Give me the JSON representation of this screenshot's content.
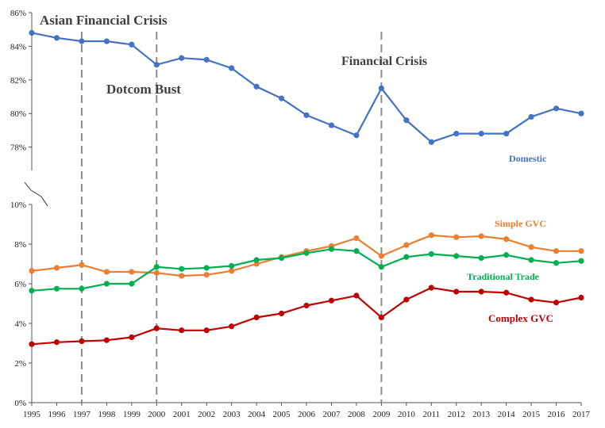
{
  "chart_data": {
    "type": "line",
    "x": [
      "1995",
      "1996",
      "1997",
      "1998",
      "1999",
      "2000",
      "2001",
      "2002",
      "2003",
      "2004",
      "2005",
      "2006",
      "2007",
      "2008",
      "2009",
      "2010",
      "2011",
      "2012",
      "2013",
      "2014",
      "2015",
      "2016",
      "2017"
    ],
    "upper_panel": {
      "yticks": [
        "78%",
        "80%",
        "82%",
        "84%",
        "86%"
      ],
      "ylim": [
        76,
        86
      ],
      "series": [
        {
          "name": "Domestic",
          "color": "#4472C4",
          "values": [
            84.8,
            84.5,
            84.3,
            84.3,
            84.1,
            82.9,
            83.3,
            83.2,
            82.7,
            81.6,
            80.9,
            79.9,
            79.3,
            78.7,
            81.5,
            79.6,
            78.3,
            78.8,
            78.8,
            78.8,
            79.8,
            80.3,
            80.0
          ]
        }
      ]
    },
    "lower_panel": {
      "yticks": [
        "0%",
        "2%",
        "4%",
        "6%",
        "8%",
        "10%"
      ],
      "ylim": [
        0,
        10
      ],
      "series": [
        {
          "name": "Simple GVC",
          "color": "#ED7D31",
          "values": [
            6.65,
            6.8,
            6.95,
            6.6,
            6.6,
            6.55,
            6.4,
            6.45,
            6.65,
            7.0,
            7.35,
            7.65,
            7.9,
            8.3,
            7.4,
            7.95,
            8.45,
            8.35,
            8.4,
            8.25,
            7.85,
            7.65,
            7.65
          ]
        },
        {
          "name": "Traditional Trade",
          "color": "#00B050",
          "values": [
            5.65,
            5.75,
            5.75,
            6.0,
            6.0,
            6.85,
            6.75,
            6.8,
            6.9,
            7.2,
            7.3,
            7.55,
            7.75,
            7.65,
            6.85,
            7.35,
            7.5,
            7.4,
            7.3,
            7.45,
            7.2,
            7.05,
            7.15
          ]
        },
        {
          "name": "Complex GVC",
          "color": "#C00000",
          "values": [
            2.95,
            3.05,
            3.1,
            3.15,
            3.3,
            3.75,
            3.65,
            3.65,
            3.85,
            4.3,
            4.5,
            4.9,
            5.15,
            5.4,
            4.3,
            5.2,
            5.8,
            5.6,
            5.6,
            5.55,
            5.2,
            5.05,
            5.3
          ]
        }
      ]
    },
    "annotations": [
      {
        "text": "Asian Financial Crisis",
        "year": "1997"
      },
      {
        "text": "Dotcom Bust",
        "year": "2000"
      },
      {
        "text": "Financial Crisis",
        "year": "2009"
      }
    ],
    "grid": false
  }
}
